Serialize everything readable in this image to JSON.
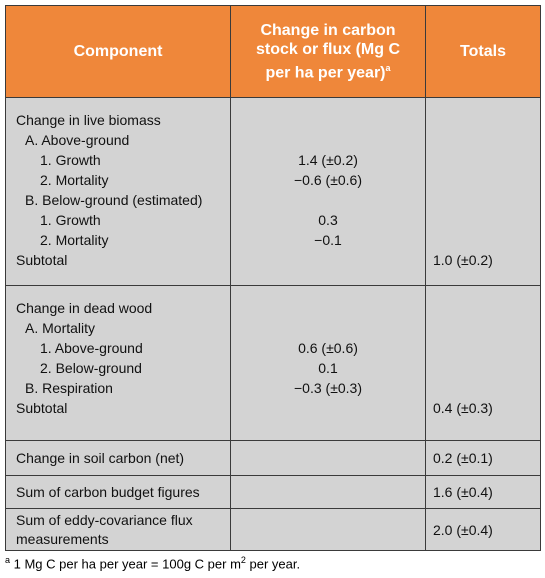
{
  "table": {
    "header": {
      "component": "Component",
      "change": "Change in carbon stock or flux (Mg C per ha per year)",
      "change_note": "a",
      "totals": "Totals"
    },
    "sections": [
      {
        "lines": [
          {
            "label": "Change in live biomass"
          },
          {
            "label": "A. Above-ground"
          },
          {
            "label": "1. Growth",
            "change": "1.4 (±0.2)"
          },
          {
            "label": "2. Mortality",
            "change": "−0.6 (±0.6)"
          },
          {
            "label": "B. Below-ground (estimated)"
          },
          {
            "label": "1. Growth",
            "change": "0.3"
          },
          {
            "label": "2. Mortality",
            "change": "−0.1"
          },
          {
            "label": "Subtotal",
            "total": "1.0 (±0.2)"
          }
        ]
      },
      {
        "lines": [
          {
            "label": "Change in dead wood"
          },
          {
            "label": "A. Mortality"
          },
          {
            "label": "1. Above-ground",
            "change": "0.6 (±0.6)"
          },
          {
            "label": "2. Below-ground",
            "change": "0.1"
          },
          {
            "label": "B. Respiration",
            "change": "−0.3 (±0.3)"
          },
          {
            "label": "Subtotal",
            "total": "0.4 (±0.3)"
          }
        ]
      },
      {
        "lines": [
          {
            "label": "Change in soil carbon (net)",
            "total": "0.2 (±0.1)"
          }
        ]
      },
      {
        "lines": [
          {
            "label": "Sum of carbon budget figures",
            "total": "1.6 (±0.4)"
          }
        ]
      },
      {
        "lines": [
          {
            "label": "Sum of eddy-covariance flux measurements",
            "total": "2.0 (±0.4)"
          }
        ]
      }
    ]
  },
  "footnote": {
    "marker": "a",
    "text": "1 Mg C per ha per year = 100g C per m",
    "sup": "2",
    "text_end": " per year."
  }
}
